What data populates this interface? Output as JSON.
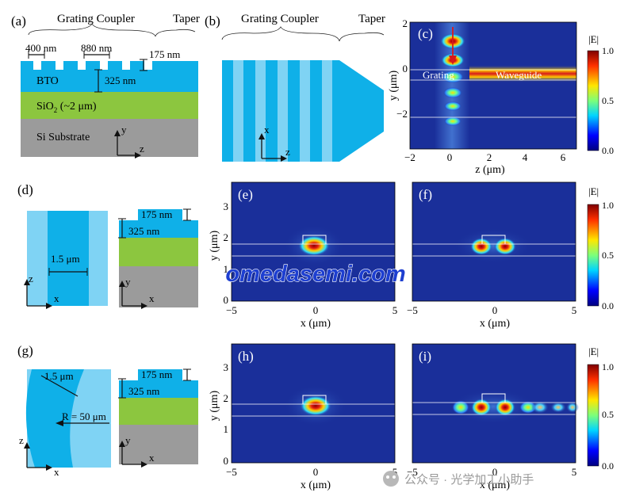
{
  "panel_labels": {
    "a": "(a)",
    "b": "(b)",
    "c": "(c)",
    "d": "(d)",
    "e": "(e)",
    "f": "(f)",
    "g": "(g)",
    "h": "(h)",
    "i": "(i)"
  },
  "a": {
    "grating_coupler": "Grating Coupler",
    "taper": "Taper",
    "dim_400": "400 nm",
    "dim_880": "880 nm",
    "dim_175": "175 nm",
    "dim_325": "325 nm",
    "bto": "BTO",
    "sio2_prefix": "SiO",
    "sio2_sub": "2",
    "sio2_suffix": " (~2 μm)",
    "si_substrate": "Si Substrate",
    "axis_y": "y",
    "axis_z": "z",
    "colors": {
      "bto": "#0fb0e8",
      "sio2": "#8cc63f",
      "si": "#9b9b9b"
    }
  },
  "b": {
    "grating_coupler": "Grating Coupler",
    "taper": "Taper",
    "axis_x": "x",
    "axis_z": "z",
    "colors": {
      "dark": "#0fb0e8",
      "light": "#7fd3f4"
    }
  },
  "c": {
    "ylabel": "y (μm)",
    "xlabel": "z (μm)",
    "yticks": [
      "2",
      "0",
      "−2"
    ],
    "xticks": [
      "−2",
      "0",
      "2",
      "4",
      "6"
    ],
    "grating_label": "Grating",
    "waveguide_label": "Waveguide"
  },
  "colorbar": {
    "title": "|E|",
    "ticks": [
      "1.0",
      "0.5",
      "0.0"
    ]
  },
  "d": {
    "dim_175": "175 nm",
    "dim_325": "325 nm",
    "dim_15": "1.5 μm",
    "axis_z": "z",
    "axis_x": "x",
    "axis_y": "y",
    "axis_x2": "x"
  },
  "g": {
    "dim_175": "175 nm",
    "dim_325": "325 nm",
    "dim_15": "1.5 μm",
    "radius": "R = 50 μm",
    "axis_z": "z",
    "axis_x": "x",
    "axis_y": "y",
    "axis_x2": "x"
  },
  "mode_plots": {
    "ylabel": "y (μm)",
    "xlabel": "x (μm)",
    "yticks": [
      "3",
      "2",
      "1",
      "0"
    ],
    "xticks": [
      "−5",
      "0",
      "5"
    ]
  },
  "watermark": "omedasemi.com",
  "footer_credit": "公众号 · 光学加工小助手",
  "colors": {
    "field_bg": "#1a2f9a",
    "accent_red": "#d7191c",
    "watermark": "#1e3fd0"
  }
}
